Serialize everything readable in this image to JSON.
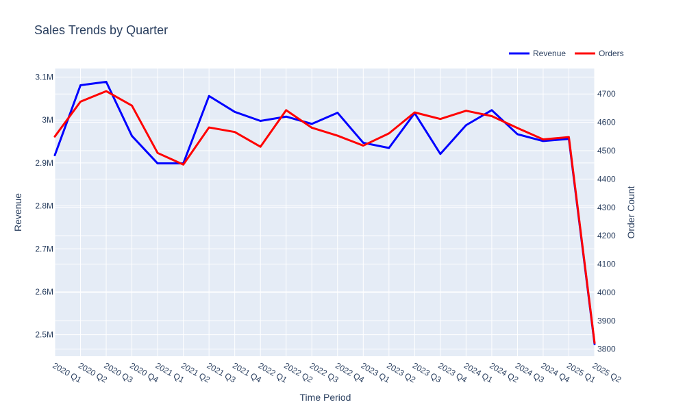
{
  "chart_data": {
    "type": "line",
    "title": "Sales Trends by Quarter",
    "xlabel": "Time Period",
    "ylabel": "Revenue",
    "y2label": "Order Count",
    "categories": [
      "2020 Q1",
      "2020 Q2",
      "2020 Q3",
      "2020 Q4",
      "2021 Q1",
      "2021 Q2",
      "2021 Q3",
      "2021 Q4",
      "2022 Q1",
      "2022 Q2",
      "2022 Q3",
      "2022 Q4",
      "2023 Q1",
      "2023 Q2",
      "2023 Q3",
      "2023 Q4",
      "2024 Q1",
      "2024 Q2",
      "2024 Q3",
      "2024 Q4",
      "2025 Q1",
      "2025 Q2"
    ],
    "ylim": [
      2450000,
      3120000
    ],
    "y2lim": [
      3775,
      4790
    ],
    "yticks": [
      2500000,
      2600000,
      2700000,
      2800000,
      2900000,
      3000000,
      3100000
    ],
    "ytick_labels": [
      "2.5M",
      "2.6M",
      "2.7M",
      "2.8M",
      "2.9M",
      "3M",
      "3.1M"
    ],
    "y2ticks": [
      3800,
      3900,
      4000,
      4100,
      4200,
      4300,
      4400,
      4500,
      4600,
      4700
    ],
    "y2tick_labels": [
      "3800",
      "3900",
      "4000",
      "4100",
      "4200",
      "4300",
      "4400",
      "4500",
      "4600",
      "4700"
    ],
    "grid": true,
    "legend_position": "top-right",
    "series": [
      {
        "name": "Revenue",
        "axis": "left",
        "color": "#0000ff",
        "values": [
          2918000,
          3081000,
          3089000,
          2963000,
          2899000,
          2899000,
          3056000,
          3019000,
          2998000,
          3008000,
          2991000,
          3017000,
          2947000,
          2935000,
          3016000,
          2921000,
          2988000,
          3023000,
          2967000,
          2951000,
          2956000,
          2478000
        ]
      },
      {
        "name": "Orders",
        "axis": "right",
        "color": "#ff0000",
        "values": [
          4550,
          4673,
          4710,
          4659,
          4492,
          4451,
          4582,
          4566,
          4514,
          4643,
          4581,
          4553,
          4518,
          4561,
          4635,
          4612,
          4641,
          4622,
          4580,
          4540,
          4548,
          3822
        ]
      }
    ]
  }
}
